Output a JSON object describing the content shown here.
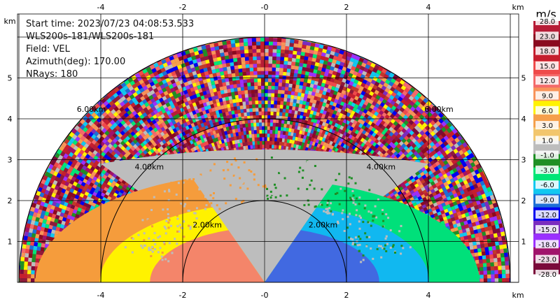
{
  "header": {
    "start_time": "Start time: 2023/07/23 04:08:53.533",
    "instrument": "WLS200s-181/WLS200s-181",
    "field": "Field: VEL",
    "azimuth": "Azimuth(deg): 170.00",
    "nrays": "NRays: 180"
  },
  "chart_data": {
    "type": "heatmap",
    "title": "",
    "xlabel": "km",
    "ylabel": "km",
    "xlim": [
      -6,
      6
    ],
    "ylim": [
      0,
      6
    ],
    "x_ticks": [
      "-4",
      "-2",
      "-0",
      "2",
      "4"
    ],
    "x_tick_values": [
      -4,
      -2,
      0,
      2,
      4
    ],
    "y_ticks": [
      "1",
      "2",
      "3",
      "4",
      "5"
    ],
    "y_tick_values": [
      1,
      2,
      3,
      4,
      5
    ],
    "x_unit_label": "km",
    "y_unit_label": "km",
    "grid": true,
    "range_rings": [
      {
        "km": 2,
        "label": "2.00km"
      },
      {
        "km": 4,
        "label": "4.00km"
      },
      {
        "km": 6,
        "label": "6.00km"
      }
    ],
    "max_range_km": 6,
    "nrays": 180,
    "colorbar": {
      "unit": "m/s",
      "labels": [
        "28.0",
        "23.0",
        "18.0",
        "15.0",
        "12.0",
        "9.0",
        "6.0",
        "3.0",
        "1.0",
        "-1.0",
        "-3.0",
        "-6.0",
        "-9.0",
        "-12.0",
        "-15.0",
        "-18.0",
        "-23.0",
        "-28.0"
      ],
      "colors": [
        "#b71c36",
        "#8a0a1f",
        "#c61e2e",
        "#ef4a4a",
        "#f46a6a",
        "#f8935a",
        "#fff200",
        "#f5a04b",
        "#f2c66d",
        "#bdbdbd",
        "#1f8f25",
        "#00e676",
        "#11c8f0",
        "#1c6fd6",
        "#0000f0",
        "#7b2cbf",
        "#9b30ff",
        "#a0126b",
        "#7a0a3a"
      ]
    },
    "velocity_regions": [
      {
        "side": "left",
        "from_km": 0.25,
        "to_km": 1.6,
        "value": 12.0,
        "color": "#f4856a"
      },
      {
        "side": "left",
        "from_km": 1.6,
        "to_km": 2.3,
        "value": 6.0,
        "color": "#fff200"
      },
      {
        "side": "left",
        "from_km": 2.3,
        "to_km": 3.2,
        "value": 3.0,
        "color": "#f59c3c"
      },
      {
        "side": "right",
        "from_km": 0.25,
        "to_km": 1.6,
        "value": -12.0,
        "color": "#4169e1"
      },
      {
        "side": "right",
        "from_km": 1.6,
        "to_km": 2.3,
        "value": -9.0,
        "color": "#11b8f0"
      },
      {
        "side": "right",
        "from_km": 2.3,
        "to_km": 3.0,
        "value": -6.0,
        "color": "#00e07a"
      },
      {
        "side": "center",
        "from_km": 0.0,
        "to_km": 3.3,
        "value": 0.0,
        "color": "#bdbdbd"
      }
    ]
  }
}
